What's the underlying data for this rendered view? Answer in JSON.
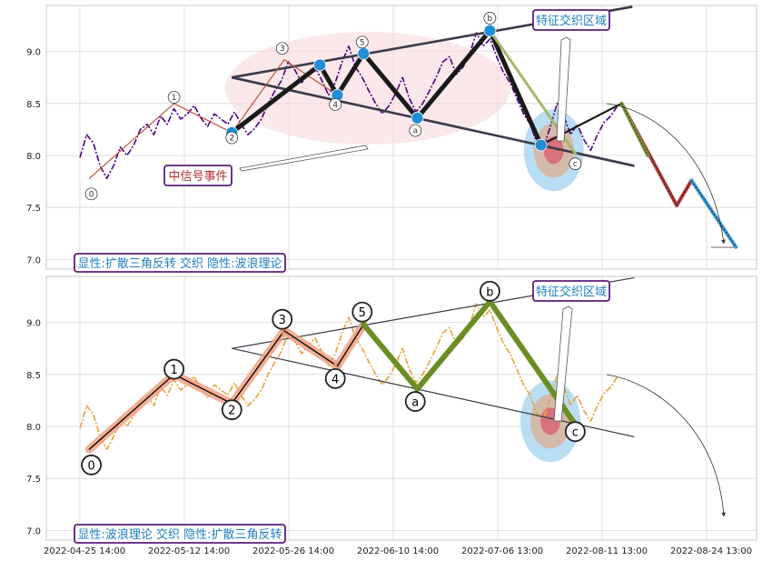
{
  "colors": {
    "price_top": "#4b0082",
    "price_bottom": "#e8a33a",
    "wave_dark": "#1a1a1a",
    "wave_green": "#6b8e23",
    "wave_light_green": "#a4b86a",
    "wave_orange_red": "#c0543a",
    "wave_salmon": "#f0a080",
    "node_blue": "#1e8fd5",
    "box_border": "#5b1e7a",
    "box_text_blue": "#1f7fbf",
    "box_text_red": "#b03030",
    "pink_ellipse": "#f7d9de",
    "trend_line": "#3a3a4a",
    "proj_red": "#b33a3a",
    "proj_blue": "#3a9bd5",
    "proj_green": "#7a9a3a"
  },
  "chart_data": [
    {
      "type": "line",
      "panel": "top",
      "ylim": [
        6.95,
        9.45
      ],
      "yticks": [
        "7.0",
        "7.5",
        "8.0",
        "8.5",
        "9.0"
      ],
      "grid": true,
      "price_series": [
        [
          0,
          7.98
        ],
        [
          1,
          8.2
        ],
        [
          2,
          8.12
        ],
        [
          3,
          7.9
        ],
        [
          4,
          7.78
        ],
        [
          5,
          7.9
        ],
        [
          6,
          8.08
        ],
        [
          7,
          8.0
        ],
        [
          8,
          8.1
        ],
        [
          9,
          8.25
        ],
        [
          10,
          8.3
        ],
        [
          11,
          8.2
        ],
        [
          12,
          8.38
        ],
        [
          13,
          8.3
        ],
        [
          14,
          8.45
        ],
        [
          15,
          8.35
        ],
        [
          16,
          8.4
        ],
        [
          17,
          8.48
        ],
        [
          18,
          8.36
        ],
        [
          19,
          8.28
        ],
        [
          20,
          8.4
        ],
        [
          21,
          8.35
        ],
        [
          22,
          8.3
        ],
        [
          23,
          8.42
        ],
        [
          24,
          8.3
        ],
        [
          25,
          8.2
        ],
        [
          26,
          8.26
        ],
        [
          27,
          8.35
        ],
        [
          28,
          8.5
        ],
        [
          29,
          8.62
        ],
        [
          30,
          8.72
        ],
        [
          31,
          8.9
        ],
        [
          32,
          8.82
        ],
        [
          33,
          8.7
        ],
        [
          34,
          8.78
        ],
        [
          35,
          8.85
        ],
        [
          36,
          8.72
        ],
        [
          37,
          8.58
        ],
        [
          38,
          8.7
        ],
        [
          39,
          8.9
        ],
        [
          40,
          9.05
        ],
        [
          41,
          8.85
        ],
        [
          42,
          8.75
        ],
        [
          43,
          8.62
        ],
        [
          44,
          8.5
        ],
        [
          45,
          8.4
        ],
        [
          46,
          8.48
        ],
        [
          47,
          8.6
        ],
        [
          48,
          8.75
        ],
        [
          49,
          8.55
        ],
        [
          50,
          8.42
        ],
        [
          51,
          8.5
        ],
        [
          52,
          8.62
        ],
        [
          53,
          8.75
        ],
        [
          54,
          8.9
        ],
        [
          55,
          8.95
        ],
        [
          56,
          8.78
        ],
        [
          57,
          8.85
        ],
        [
          58,
          8.98
        ],
        [
          59,
          9.18
        ],
        [
          60,
          9.05
        ],
        [
          61,
          9.12
        ],
        [
          62,
          8.95
        ],
        [
          63,
          8.8
        ],
        [
          64,
          8.7
        ],
        [
          65,
          8.55
        ],
        [
          66,
          8.4
        ],
        [
          67,
          8.3
        ],
        [
          68,
          8.12
        ],
        [
          69,
          8.08
        ],
        [
          70,
          8.28
        ],
        [
          71,
          8.5
        ],
        [
          72,
          8.38
        ],
        [
          73,
          8.2
        ],
        [
          74,
          8.3
        ],
        [
          75,
          8.15
        ],
        [
          76,
          8.05
        ],
        [
          77,
          8.2
        ],
        [
          78,
          8.32
        ],
        [
          79,
          8.38
        ],
        [
          80,
          8.48
        ]
      ],
      "waves": [
        {
          "from": [
            1.4,
            7.78
          ],
          "to": [
            14,
            8.5
          ],
          "style": "thin_orange"
        },
        {
          "from": [
            14,
            8.5
          ],
          "to": [
            22.6,
            8.22
          ],
          "style": "thin_orange"
        },
        {
          "from": [
            22.6,
            8.22
          ],
          "to": [
            30.4,
            8.92
          ],
          "style": "thin_orange"
        },
        {
          "from": [
            30.4,
            8.92
          ],
          "to": [
            38.3,
            8.58
          ],
          "style": "thin_orange"
        },
        {
          "from": [
            22.6,
            8.22
          ],
          "to": [
            35.7,
            8.87
          ],
          "style": "thick_dark"
        },
        {
          "from": [
            35.7,
            8.87
          ],
          "to": [
            38.3,
            8.58
          ],
          "style": "thick_dark"
        },
        {
          "from": [
            38.3,
            8.58
          ],
          "to": [
            42.2,
            8.98
          ],
          "style": "thick_dark"
        },
        {
          "from": [
            42.2,
            8.98
          ],
          "to": [
            50.2,
            8.36
          ],
          "style": "thick_dark"
        },
        {
          "from": [
            50.2,
            8.36
          ],
          "to": [
            61.0,
            9.2
          ],
          "style": "thick_dark"
        },
        {
          "from": [
            61.0,
            9.2
          ],
          "to": [
            68.6,
            8.1
          ],
          "style": "thick_dark"
        },
        {
          "from": [
            68.6,
            8.1
          ],
          "to": [
            80.6,
            8.5
          ],
          "style": "dark_green"
        },
        {
          "from": [
            61.0,
            9.2
          ],
          "to": [
            73.8,
            8.01
          ],
          "style": "light_green"
        }
      ],
      "projection": [
        {
          "from": [
            80.6,
            8.5
          ],
          "to": [
            88.8,
            7.52
          ],
          "color": "proj_red"
        },
        {
          "from": [
            88.8,
            7.52
          ],
          "to": [
            91.0,
            7.76
          ],
          "color": "proj_red"
        },
        {
          "from": [
            91.0,
            7.76
          ],
          "to": [
            97.6,
            7.12
          ],
          "color": "proj_blue"
        },
        {
          "from": [
            80.6,
            8.5
          ],
          "to": [
            84.5,
            8.0
          ],
          "color": "proj_green"
        }
      ],
      "trend_upper": [
        [
          22.6,
          8.75
        ],
        [
          82.2,
          9.43
        ]
      ],
      "trend_lower": [
        [
          22.6,
          8.75
        ],
        [
          82.5,
          7.9
        ]
      ],
      "nodes": [
        [
          22.6,
          8.22
        ],
        [
          35.7,
          8.87
        ],
        [
          38.3,
          8.58
        ],
        [
          42.2,
          8.98
        ],
        [
          50.2,
          8.36
        ],
        [
          61.0,
          9.2
        ],
        [
          68.6,
          8.1
        ]
      ],
      "labels": [
        {
          "text": "0",
          "x": 1.7,
          "y": 7.63
        },
        {
          "text": "1",
          "x": 14,
          "y": 8.56
        },
        {
          "text": "2",
          "x": 22.6,
          "y": 8.17
        },
        {
          "text": "3",
          "x": 30.1,
          "y": 9.03
        },
        {
          "text": "4",
          "x": 38.0,
          "y": 8.49
        },
        {
          "text": "5",
          "x": 42.0,
          "y": 9.09
        },
        {
          "text": "a",
          "x": 49.9,
          "y": 8.24
        },
        {
          "text": "b",
          "x": 61.0,
          "y": 9.32
        },
        {
          "text": "c",
          "x": 73.7,
          "y": 7.92
        }
      ],
      "focus_zone": {
        "x": 70.5,
        "y": 8.05
      },
      "text_boxes": {
        "zone": "特征交织区域",
        "signal": "中信号事件",
        "caption": "显性:扩散三角反转 交织 隐性:波浪理论"
      }
    },
    {
      "type": "line",
      "panel": "bottom",
      "ylim": [
        6.95,
        9.45
      ],
      "yticks": [
        "7.0",
        "7.5",
        "8.0",
        "8.5",
        "9.0"
      ],
      "grid": true,
      "xticks": [
        "2022-04-25 14:00",
        "2022-05-12 14:00",
        "2022-05-26 14:00",
        "2022-06-10 14:00",
        "2022-07-06 13:00",
        "2022-08-11 13:00",
        "2022-08-24 13:00"
      ],
      "waves": [
        {
          "from": [
            1.4,
            7.78
          ],
          "to": [
            14,
            8.5
          ],
          "style": "salmon_black"
        },
        {
          "from": [
            14,
            8.5
          ],
          "to": [
            22.6,
            8.22
          ],
          "style": "salmon_black"
        },
        {
          "from": [
            22.6,
            8.22
          ],
          "to": [
            30.4,
            8.92
          ],
          "style": "salmon_black"
        },
        {
          "from": [
            30.4,
            8.92
          ],
          "to": [
            38.3,
            8.58
          ],
          "style": "salmon_black"
        },
        {
          "from": [
            38.3,
            8.58
          ],
          "to": [
            42.2,
            8.98
          ],
          "style": "salmon_black"
        },
        {
          "from": [
            42.2,
            8.98
          ],
          "to": [
            50.2,
            8.36
          ],
          "style": "green"
        },
        {
          "from": [
            50.2,
            8.36
          ],
          "to": [
            61.0,
            9.2
          ],
          "style": "green"
        },
        {
          "from": [
            61.0,
            9.2
          ],
          "to": [
            73.8,
            8.01
          ],
          "style": "green"
        }
      ],
      "trend_upper": [
        [
          22.6,
          8.75
        ],
        [
          82.5,
          9.43
        ]
      ],
      "trend_lower": [
        [
          22.6,
          8.75
        ],
        [
          82.5,
          7.9
        ]
      ],
      "labels": [
        {
          "text": "0",
          "x": 1.7,
          "y": 7.63
        },
        {
          "text": "1",
          "x": 14,
          "y": 8.55
        },
        {
          "text": "2",
          "x": 22.6,
          "y": 8.16
        },
        {
          "text": "3",
          "x": 30.1,
          "y": 9.03
        },
        {
          "text": "4",
          "x": 38.0,
          "y": 8.46
        },
        {
          "text": "5",
          "x": 42.0,
          "y": 9.1
        },
        {
          "text": "a",
          "x": 49.9,
          "y": 8.24
        },
        {
          "text": "b",
          "x": 61.0,
          "y": 9.3
        },
        {
          "text": "c",
          "x": 73.7,
          "y": 7.95
        }
      ],
      "focus_zone": {
        "x": 70.0,
        "y": 8.05
      },
      "text_boxes": {
        "zone": "特征交织区域",
        "caption": "显性:波浪理论 交织 隐性:扩散三角反转"
      }
    }
  ]
}
